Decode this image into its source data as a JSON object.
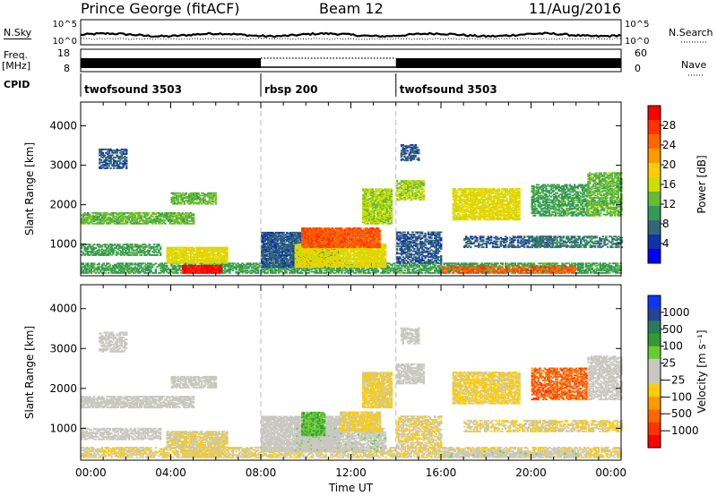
{
  "header": {
    "title": "Prince George (fitACF)",
    "beam": "Beam 12",
    "date": "11/Aug/2016"
  },
  "panels": {
    "nsky_label": "N.Sky",
    "nsearch_label": "N.Search",
    "nsky_ticks": [
      "10^5",
      "10^0"
    ],
    "nsearch_ticks": [
      "10^5",
      "10^0"
    ],
    "freq_label_1": "Freq.",
    "freq_label_2": "[MHz]",
    "freq_ticks": [
      "18",
      "8"
    ],
    "nave_label": "Nave",
    "nave_ticks": [
      "60",
      "0"
    ],
    "cpid_label": "CPID",
    "cpid_segments": [
      {
        "name": "twofsound 3503",
        "start_hour": 0,
        "end_hour": 8
      },
      {
        "name": "rbsp 200",
        "start_hour": 8,
        "end_hour": 14
      },
      {
        "name": "twofsound 3503",
        "start_hour": 14,
        "end_hour": 24
      }
    ]
  },
  "power_colorbar": {
    "label": "Power [dB]",
    "ticks": [
      "28",
      "24",
      "20",
      "16",
      "12",
      "8",
      "4"
    ],
    "colors": [
      "#ff0000",
      "#ff3300",
      "#ff6600",
      "#ff9900",
      "#ffcc00",
      "#ccdd00",
      "#66bb33",
      "#339955",
      "#336677",
      "#1133aa",
      "#0000ff"
    ]
  },
  "velocity_colorbar": {
    "label": "Velocity [m s⁻¹]",
    "ticks": [
      "1000",
      "500",
      "100",
      "25",
      "−25",
      "−100",
      "−500",
      "−1000"
    ],
    "colors": [
      "#1133ff",
      "#224499",
      "#2a7a5a",
      "#339933",
      "#66cc33",
      "#c8c8c0",
      "#c8c8c0",
      "#ffcc00",
      "#ff9900",
      "#ff6600",
      "#ff3300",
      "#ff0000"
    ]
  },
  "chart_data": [
    {
      "type": "heatmap",
      "title": "",
      "variable": "Power",
      "units": "dB",
      "xlabel": "Time UT",
      "ylabel": "Slant Range [km]",
      "xlim_hours": [
        0,
        24
      ],
      "ylim_km": [
        200,
        4600
      ],
      "x_ticks": [
        "00:00",
        "04:00",
        "08:00",
        "12:00",
        "16:00",
        "20:00",
        "00:00"
      ],
      "y_ticks": [
        1000,
        2000,
        3000,
        4000
      ],
      "clim": [
        0,
        30
      ],
      "mode_change_hours": [
        8,
        14
      ],
      "echo_regions": [
        {
          "t_start": 0.0,
          "t_end": 24.0,
          "r_min": 250,
          "r_max": 500,
          "value": 10,
          "density": 0.65
        },
        {
          "t_start": 0.0,
          "t_end": 5.0,
          "r_min": 1500,
          "r_max": 1800,
          "value": 12,
          "density": 0.75
        },
        {
          "t_start": 0.0,
          "t_end": 3.5,
          "r_min": 700,
          "r_max": 1000,
          "value": 10,
          "density": 0.6
        },
        {
          "t_start": 3.8,
          "t_end": 6.5,
          "r_min": 500,
          "r_max": 900,
          "value": 16,
          "density": 0.85
        },
        {
          "t_start": 4.5,
          "t_end": 6.2,
          "r_min": 250,
          "r_max": 450,
          "value": 28,
          "density": 0.95
        },
        {
          "t_start": 4.0,
          "t_end": 6.0,
          "r_min": 2000,
          "r_max": 2300,
          "value": 12,
          "density": 0.7
        },
        {
          "t_start": 0.8,
          "t_end": 2.0,
          "r_min": 2900,
          "r_max": 3400,
          "value": 6,
          "density": 0.55
        },
        {
          "t_start": 8.0,
          "t_end": 11.5,
          "r_min": 400,
          "r_max": 1300,
          "value": 6,
          "density": 0.85
        },
        {
          "t_start": 9.5,
          "t_end": 13.5,
          "r_min": 400,
          "r_max": 1000,
          "value": 16,
          "density": 0.85
        },
        {
          "t_start": 9.8,
          "t_end": 13.3,
          "r_min": 900,
          "r_max": 1400,
          "value": 24,
          "density": 0.9
        },
        {
          "t_start": 12.5,
          "t_end": 13.8,
          "r_min": 1500,
          "r_max": 2400,
          "value": 14,
          "density": 0.85
        },
        {
          "t_start": 14.0,
          "t_end": 16.0,
          "r_min": 500,
          "r_max": 1300,
          "value": 6,
          "density": 0.6
        },
        {
          "t_start": 14.0,
          "t_end": 15.2,
          "r_min": 2100,
          "r_max": 2600,
          "value": 14,
          "density": 0.7
        },
        {
          "t_start": 14.2,
          "t_end": 15.0,
          "r_min": 3100,
          "r_max": 3500,
          "value": 6,
          "density": 0.6
        },
        {
          "t_start": 16.5,
          "t_end": 19.5,
          "r_min": 1600,
          "r_max": 2400,
          "value": 16,
          "density": 0.75
        },
        {
          "t_start": 17.0,
          "t_end": 21.0,
          "r_min": 900,
          "r_max": 1200,
          "value": 6,
          "density": 0.5
        },
        {
          "t_start": 16.0,
          "t_end": 22.0,
          "r_min": 250,
          "r_max": 420,
          "value": 24,
          "density": 0.55
        },
        {
          "t_start": 20.0,
          "t_end": 22.5,
          "r_min": 1700,
          "r_max": 2500,
          "value": 10,
          "density": 0.6
        },
        {
          "t_start": 22.5,
          "t_end": 24.0,
          "r_min": 1700,
          "r_max": 2800,
          "value": 12,
          "density": 0.65
        },
        {
          "t_start": 20.0,
          "t_end": 24.0,
          "r_min": 900,
          "r_max": 1200,
          "value": 8,
          "density": 0.55
        }
      ]
    },
    {
      "type": "heatmap",
      "title": "",
      "variable": "Velocity",
      "units": "m s^-1",
      "xlabel": "Time UT",
      "ylabel": "Slant Range [km]",
      "xlim_hours": [
        0,
        24
      ],
      "ylim_km": [
        200,
        4600
      ],
      "x_ticks": [
        "00:00",
        "04:00",
        "08:00",
        "12:00",
        "16:00",
        "20:00",
        "00:00"
      ],
      "y_ticks": [
        1000,
        2000,
        3000,
        4000
      ],
      "clim": [
        -1000,
        1000
      ],
      "mode_change_hours": [
        8,
        14
      ],
      "echo_regions": [
        {
          "t_start": 0.0,
          "t_end": 24.0,
          "r_min": 250,
          "r_max": 500,
          "value": -150,
          "density": 0.6
        },
        {
          "t_start": 0.0,
          "t_end": 5.0,
          "r_min": 1500,
          "r_max": 1800,
          "value": 0,
          "density": 0.75
        },
        {
          "t_start": 0.0,
          "t_end": 3.5,
          "r_min": 700,
          "r_max": 1000,
          "value": 0,
          "density": 0.6
        },
        {
          "t_start": 3.8,
          "t_end": 6.5,
          "r_min": 500,
          "r_max": 900,
          "value": -150,
          "density": 0.8
        },
        {
          "t_start": 4.5,
          "t_end": 6.2,
          "r_min": 250,
          "r_max": 450,
          "value": -150,
          "density": 0.8
        },
        {
          "t_start": 4.0,
          "t_end": 6.0,
          "r_min": 2000,
          "r_max": 2300,
          "value": 0,
          "density": 0.7
        },
        {
          "t_start": 0.8,
          "t_end": 2.0,
          "r_min": 2900,
          "r_max": 3400,
          "value": 0,
          "density": 0.55
        },
        {
          "t_start": 8.0,
          "t_end": 11.5,
          "r_min": 400,
          "r_max": 1300,
          "value": 0,
          "density": 0.85
        },
        {
          "t_start": 9.5,
          "t_end": 13.5,
          "r_min": 400,
          "r_max": 1000,
          "value": 60,
          "density": 0.7
        },
        {
          "t_start": 9.8,
          "t_end": 10.8,
          "r_min": 800,
          "r_max": 1400,
          "value": 300,
          "density": 0.8
        },
        {
          "t_start": 11.5,
          "t_end": 13.3,
          "r_min": 900,
          "r_max": 1400,
          "value": -200,
          "density": 0.85
        },
        {
          "t_start": 12.5,
          "t_end": 13.8,
          "r_min": 1500,
          "r_max": 2400,
          "value": -200,
          "density": 0.85
        },
        {
          "t_start": 14.0,
          "t_end": 16.0,
          "r_min": 500,
          "r_max": 1300,
          "value": -150,
          "density": 0.6
        },
        {
          "t_start": 14.0,
          "t_end": 15.2,
          "r_min": 2100,
          "r_max": 2600,
          "value": 0,
          "density": 0.7
        },
        {
          "t_start": 14.2,
          "t_end": 15.0,
          "r_min": 3100,
          "r_max": 3500,
          "value": 0,
          "density": 0.6
        },
        {
          "t_start": 16.5,
          "t_end": 19.5,
          "r_min": 1600,
          "r_max": 2400,
          "value": -200,
          "density": 0.75
        },
        {
          "t_start": 17.0,
          "t_end": 21.0,
          "r_min": 900,
          "r_max": 1200,
          "value": -150,
          "density": 0.5
        },
        {
          "t_start": 16.0,
          "t_end": 22.0,
          "r_min": 250,
          "r_max": 420,
          "value": 60,
          "density": 0.5
        },
        {
          "t_start": 20.0,
          "t_end": 22.5,
          "r_min": 1700,
          "r_max": 2500,
          "value": -600,
          "density": 0.6
        },
        {
          "t_start": 22.5,
          "t_end": 24.0,
          "r_min": 1700,
          "r_max": 2800,
          "value": 0,
          "density": 0.65
        },
        {
          "t_start": 20.0,
          "t_end": 24.0,
          "r_min": 900,
          "r_max": 1200,
          "value": -150,
          "density": 0.55
        }
      ]
    }
  ]
}
